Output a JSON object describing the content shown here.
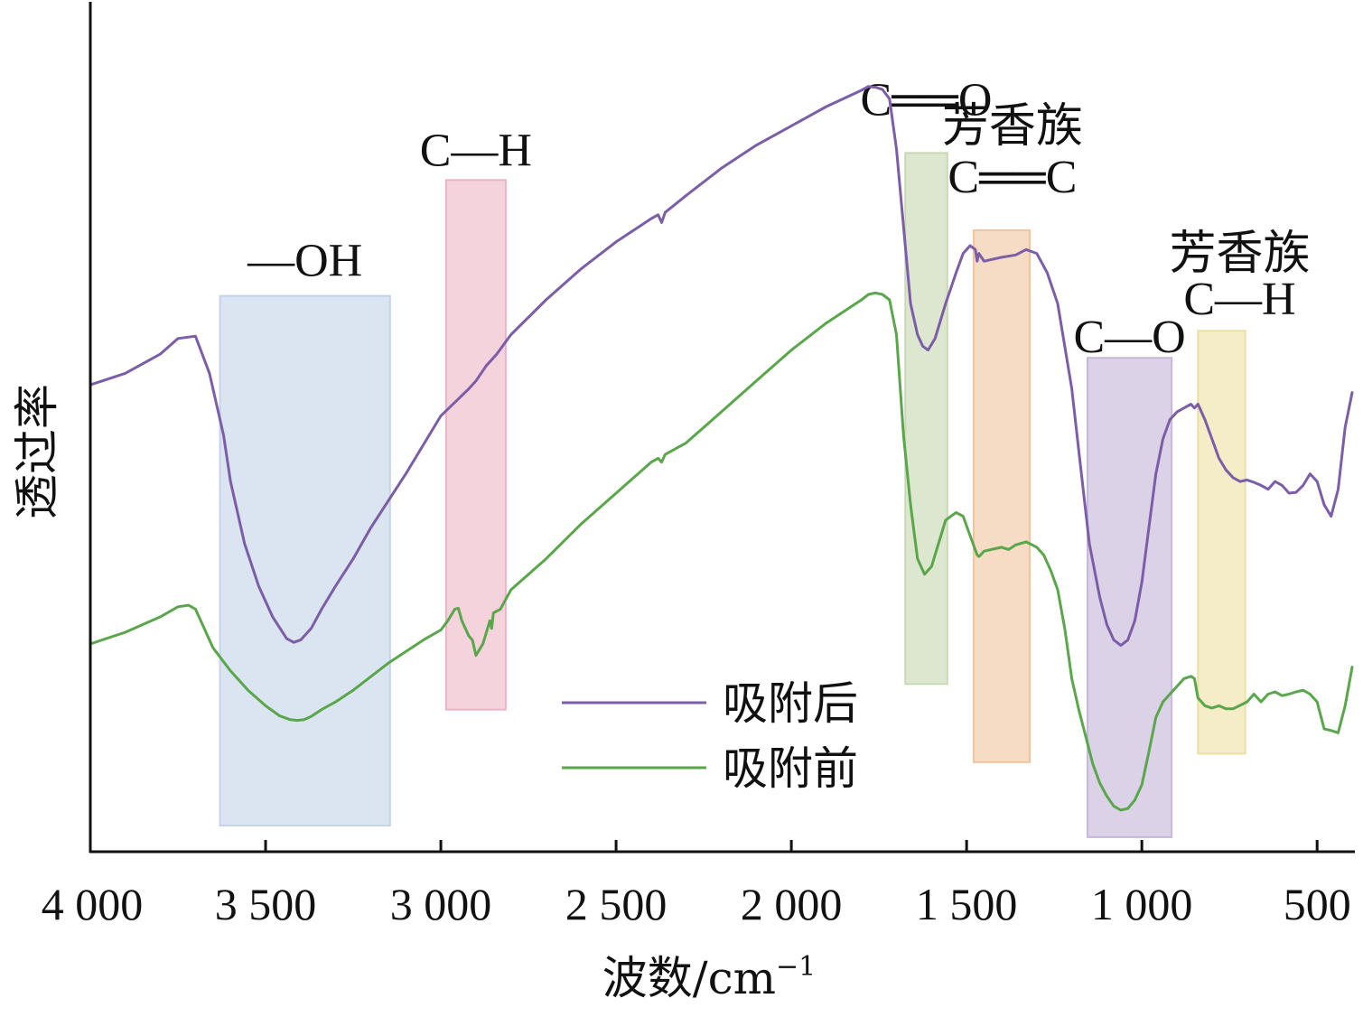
{
  "chart_data": {
    "type": "line",
    "xlabel": "波数/cm",
    "xlabel_superscript": "−1",
    "ylabel": "透过率",
    "xlim": [
      4000,
      400
    ],
    "x_reversed": true,
    "x_ticks": [
      4000,
      3500,
      3000,
      2500,
      2000,
      1500,
      1000,
      500
    ],
    "x_tick_labels": [
      "4 000",
      "3 500",
      "3 000",
      "2 500",
      "2 000",
      "1 500",
      "1 000",
      "500"
    ],
    "y_ticks_shown": false,
    "ylim": [
      0,
      100
    ],
    "legend_position": "bottom-center",
    "series": [
      {
        "name": "吸附后",
        "color": "#7b5ea7",
        "x": [
          4000,
          3900,
          3800,
          3750,
          3700,
          3660,
          3620,
          3600,
          3560,
          3520,
          3480,
          3440,
          3420,
          3400,
          3370,
          3340,
          3300,
          3250,
          3200,
          3100,
          3000,
          2920,
          2900,
          2870,
          2850,
          2840,
          2800,
          2700,
          2600,
          2500,
          2400,
          2380,
          2370,
          2360,
          2300,
          2200,
          2100,
          2000,
          1900,
          1800,
          1780,
          1760,
          1740,
          1720,
          1700,
          1680,
          1660,
          1640,
          1625,
          1610,
          1590,
          1560,
          1530,
          1510,
          1490,
          1475,
          1470,
          1465,
          1450,
          1400,
          1360,
          1330,
          1300,
          1270,
          1240,
          1200,
          1170,
          1150,
          1120,
          1100,
          1080,
          1060,
          1040,
          1020,
          1000,
          980,
          960,
          940,
          920,
          900,
          880,
          860,
          850,
          840,
          820,
          800,
          780,
          760,
          740,
          720,
          700,
          680,
          660,
          640,
          620,
          600,
          580,
          560,
          540,
          520,
          500,
          480,
          460,
          440,
          420,
          400
        ],
        "y": [
          60.5,
          62,
          64.5,
          66.5,
          66.8,
          62,
          54,
          48,
          40,
          34.5,
          30.5,
          27.7,
          27.2,
          27.5,
          29,
          31.5,
          34.5,
          38,
          42,
          49,
          56.5,
          60,
          61,
          63,
          64,
          64.5,
          67,
          71.5,
          75.5,
          79,
          82,
          82.5,
          81.5,
          82.8,
          85,
          88.5,
          91.5,
          94,
          96.5,
          98.6,
          99.1,
          99.0,
          98.7,
          97.5,
          91,
          81,
          71,
          67,
          65.5,
          65,
          66.5,
          71,
          75,
          77.5,
          78.5,
          78,
          76.5,
          77.5,
          76.5,
          77,
          77.3,
          78,
          77.5,
          75,
          71,
          60,
          48,
          40,
          33,
          29.5,
          27.5,
          26.8,
          27.5,
          30,
          35,
          42,
          49,
          53.5,
          56,
          57,
          57.5,
          58,
          57.5,
          58,
          56,
          53.5,
          51,
          49.5,
          48.5,
          48,
          48.2,
          47.9,
          47.5,
          47,
          48,
          47.5,
          46.5,
          46.6,
          47.5,
          49,
          48,
          45,
          43.5,
          47,
          55,
          59.5
        ]
      },
      {
        "name": "吸附前",
        "color": "#5aa64a",
        "x": [
          4000,
          3900,
          3800,
          3750,
          3720,
          3700,
          3680,
          3650,
          3600,
          3550,
          3500,
          3460,
          3430,
          3410,
          3390,
          3370,
          3340,
          3300,
          3250,
          3150,
          3050,
          3000,
          2980,
          2960,
          2950,
          2940,
          2920,
          2910,
          2900,
          2880,
          2860,
          2855,
          2850,
          2830,
          2800,
          2700,
          2600,
          2500,
          2400,
          2380,
          2370,
          2360,
          2300,
          2200,
          2100,
          2000,
          1900,
          1800,
          1780,
          1760,
          1740,
          1720,
          1700,
          1680,
          1660,
          1640,
          1620,
          1600,
          1580,
          1560,
          1530,
          1510,
          1490,
          1470,
          1465,
          1460,
          1450,
          1400,
          1380,
          1370,
          1360,
          1330,
          1300,
          1280,
          1260,
          1240,
          1220,
          1200,
          1180,
          1160,
          1140,
          1120,
          1100,
          1080,
          1060,
          1040,
          1020,
          1000,
          980,
          960,
          940,
          920,
          900,
          880,
          860,
          850,
          840,
          820,
          800,
          780,
          760,
          740,
          700,
          680,
          660,
          640,
          620,
          600,
          580,
          560,
          540,
          520,
          500,
          480,
          460,
          440,
          420,
          400
        ],
        "y": [
          27,
          28.5,
          30.5,
          31.8,
          32,
          31.5,
          29.5,
          26.5,
          23.5,
          21,
          19,
          17.7,
          17.2,
          17.1,
          17.2,
          17.6,
          18.5,
          19.5,
          21,
          24.5,
          27.5,
          28.8,
          30,
          31.5,
          31.6,
          30,
          28,
          27.5,
          25.5,
          27,
          30,
          29,
          31,
          31.5,
          34,
          38,
          42.5,
          46.5,
          50.5,
          51,
          50.5,
          51.5,
          53,
          57,
          61,
          65,
          68.5,
          71.5,
          72.2,
          72.4,
          72.2,
          71.5,
          67,
          54,
          45,
          38,
          36,
          37,
          40,
          43,
          44,
          43.5,
          41,
          38.5,
          38.3,
          38.5,
          39,
          39.5,
          39.2,
          39.5,
          39.8,
          40.2,
          39.5,
          38.5,
          36.5,
          34,
          29,
          22.5,
          18.5,
          15,
          11.5,
          9,
          7.3,
          6,
          5.5,
          5.7,
          6.8,
          8.8,
          13,
          17.5,
          19.5,
          20.5,
          21.5,
          22.5,
          22.8,
          22.5,
          20,
          19,
          18.7,
          19,
          18.6,
          18.6,
          19.5,
          20.5,
          19.5,
          20.5,
          20.8,
          20.3,
          20.5,
          20.8,
          21,
          20.5,
          19.5,
          16,
          15.8,
          15.5,
          19,
          24
        ]
      }
    ],
    "bands": [
      {
        "label": "—OH",
        "x_from": 3630,
        "x_to": 3145,
        "color": "#dbe4f1",
        "border": "#c4d3ea",
        "y_top": 72,
        "y_bottom": 3.5
      },
      {
        "label": "C—H",
        "x_from": 2985,
        "x_to": 2815,
        "color": "#f4d3dc",
        "border": "#ebb3c3",
        "y_top": 87,
        "y_bottom": 18.5
      },
      {
        "label": "C══O",
        "x_from": 1675,
        "x_to": 1555,
        "color": "#dde6cf",
        "border": "#c8d9b4",
        "y_top": 90.5,
        "y_bottom": 21.8
      },
      {
        "label": "芳香族",
        "label2": "C══C",
        "x_from": 1480,
        "x_to": 1320,
        "color": "#f6dbc5",
        "border": "#f0c4a0",
        "y_top": 80.5,
        "y_bottom": 11.7
      },
      {
        "label": "C—O",
        "x_from": 1155,
        "x_to": 915,
        "color": "#dcd2e8",
        "border": "#c6b8dd",
        "y_top": 64,
        "y_bottom": 2
      },
      {
        "label": "芳香族",
        "label2": "C—H",
        "x_from": 840,
        "x_to": 705,
        "color": "#f5ecc8",
        "border": "#ecdfa4",
        "y_top": 67.5,
        "y_bottom": 12.8
      }
    ]
  }
}
